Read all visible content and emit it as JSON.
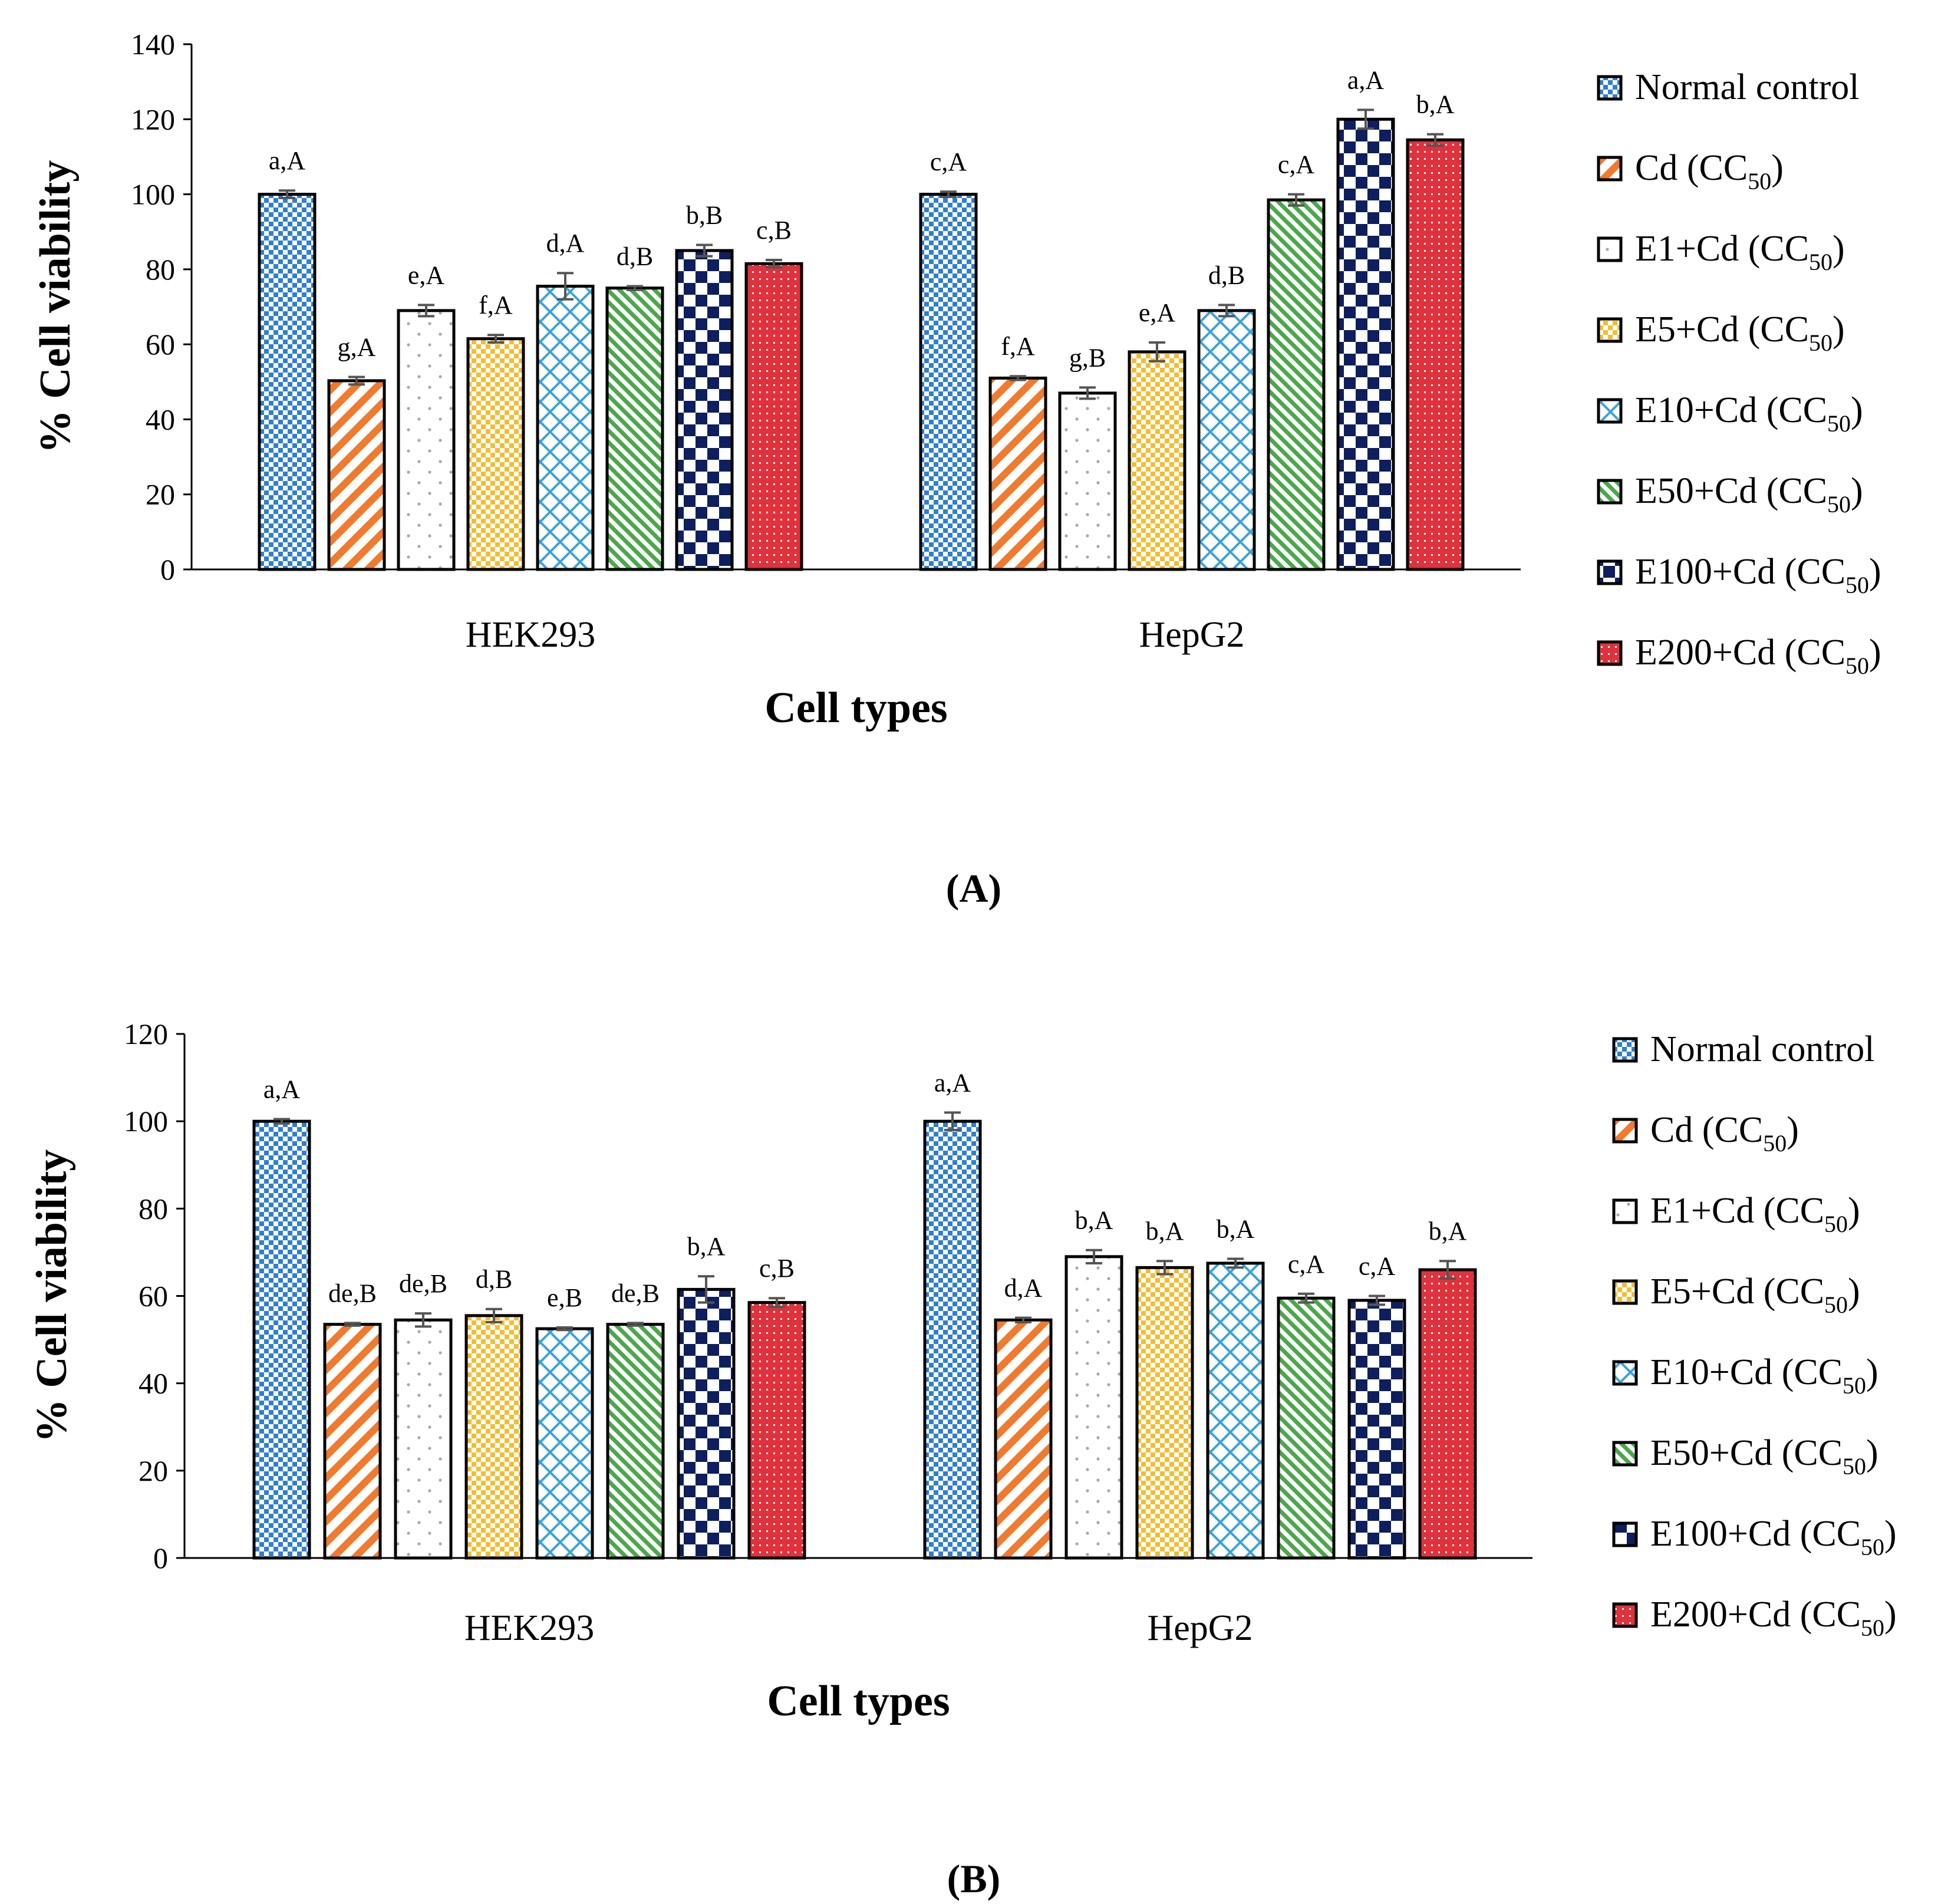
{
  "series_style": [
    {
      "color": "#2f7fd0",
      "pattern": "check-small"
    },
    {
      "color": "#f07a2e",
      "pattern": "diag-stripe"
    },
    {
      "color": "#a8a8a8",
      "pattern": "dots"
    },
    {
      "color": "#f2bd32",
      "pattern": "check-small"
    },
    {
      "color": "#3aa3d8",
      "pattern": "diamond-grid"
    },
    {
      "color": "#4aa84a",
      "pattern": "diag-stripe-fine"
    },
    {
      "color": "#0d1f5e",
      "pattern": "check-large"
    },
    {
      "color": "#e0323c",
      "pattern": "dots-dense"
    }
  ],
  "legend_entries": [
    {
      "main": "Normal control",
      "sub": ""
    },
    {
      "main": "Cd (CC",
      "sub": "50",
      "close": ")"
    },
    {
      "main": "E1+Cd (CC",
      "sub": "50",
      "close": ")"
    },
    {
      "main": "E5+Cd (CC",
      "sub": "50",
      "close": ")"
    },
    {
      "main": "E10+Cd (CC",
      "sub": "50",
      "close": ")"
    },
    {
      "main": "E50+Cd (CC",
      "sub": "50",
      "close": ")"
    },
    {
      "main": "E100+Cd (CC",
      "sub": "50",
      "close": ")"
    },
    {
      "main": "E200+Cd (CC",
      "sub": "50",
      "close": ")"
    }
  ],
  "chart_data": [
    {
      "type": "bar",
      "panel_label": "(A)",
      "xlabel": "Cell types",
      "ylabel": "% Cell viability",
      "ylim": [
        0,
        140
      ],
      "yticks": [
        0,
        20,
        40,
        60,
        80,
        100,
        120,
        140
      ],
      "categories": [
        "HEK293",
        "HepG2"
      ],
      "series": [
        {
          "name": "Normal control",
          "values": [
            100,
            100
          ],
          "errors": [
            1,
            0.7
          ],
          "labels": [
            "a,A",
            "c,A"
          ]
        },
        {
          "name": "Cd (CC50)",
          "values": [
            50.3,
            51
          ],
          "errors": [
            1,
            0.5
          ],
          "labels": [
            "g,A",
            "f,A"
          ]
        },
        {
          "name": "E1+Cd (CC50)",
          "values": [
            69,
            47
          ],
          "errors": [
            1.5,
            1.5
          ],
          "labels": [
            "e,A",
            "g,B"
          ]
        },
        {
          "name": "E5+Cd (CC50)",
          "values": [
            61.5,
            58
          ],
          "errors": [
            1,
            2.5
          ],
          "labels": [
            "f,A",
            "e,A"
          ]
        },
        {
          "name": "E10+Cd (CC50)",
          "values": [
            75.5,
            69
          ],
          "errors": [
            3.5,
            1.5
          ],
          "labels": [
            "d,A",
            "d,B"
          ]
        },
        {
          "name": "E50+Cd (CC50)",
          "values": [
            75,
            98.5
          ],
          "errors": [
            0.5,
            1.5
          ],
          "labels": [
            "d,B",
            "c,A"
          ]
        },
        {
          "name": "E100+Cd (CC50)",
          "values": [
            85,
            120
          ],
          "errors": [
            1.5,
            2.5
          ],
          "labels": [
            "b,B",
            "a,A"
          ]
        },
        {
          "name": "E200+Cd (CC50)",
          "values": [
            81.5,
            114.5
          ],
          "errors": [
            1,
            1.5
          ],
          "labels": [
            "c,B",
            "b,A"
          ]
        }
      ]
    },
    {
      "type": "bar",
      "panel_label": "(B)",
      "xlabel": "Cell types",
      "ylabel": "% Cell viability",
      "ylim": [
        0,
        120
      ],
      "yticks": [
        0,
        20,
        40,
        60,
        80,
        100,
        120
      ],
      "categories": [
        "HEK293",
        "HepG2"
      ],
      "series": [
        {
          "name": "Normal control",
          "values": [
            100,
            100
          ],
          "errors": [
            0.5,
            2
          ],
          "labels": [
            "a,A",
            "a,A"
          ]
        },
        {
          "name": "Cd (CC50)",
          "values": [
            53.5,
            54.5
          ],
          "errors": [
            0.3,
            0.5
          ],
          "labels": [
            "de,B",
            "d,A"
          ]
        },
        {
          "name": "E1+Cd (CC50)",
          "values": [
            54.5,
            69
          ],
          "errors": [
            1.5,
            1.5
          ],
          "labels": [
            "de,B",
            "b,A"
          ]
        },
        {
          "name": "E5+Cd (CC50)",
          "values": [
            55.5,
            66.5
          ],
          "errors": [
            1.5,
            1.5
          ],
          "labels": [
            "d,B",
            "b,A"
          ]
        },
        {
          "name": "E10+Cd (CC50)",
          "values": [
            52.5,
            67.5
          ],
          "errors": [
            0.3,
            1
          ],
          "labels": [
            "e,B",
            "b,A"
          ]
        },
        {
          "name": "E50+Cd (CC50)",
          "values": [
            53.5,
            59.5
          ],
          "errors": [
            0.3,
            1
          ],
          "labels": [
            "de,B",
            "c,A"
          ]
        },
        {
          "name": "E100+Cd (CC50)",
          "values": [
            61.5,
            59
          ],
          "errors": [
            3,
            1
          ],
          "labels": [
            "b,A",
            "c,A"
          ]
        },
        {
          "name": "E200+Cd (CC50)",
          "values": [
            58.5,
            66
          ],
          "errors": [
            1,
            2
          ],
          "labels": [
            "c,B",
            "b,A"
          ]
        }
      ]
    }
  ]
}
